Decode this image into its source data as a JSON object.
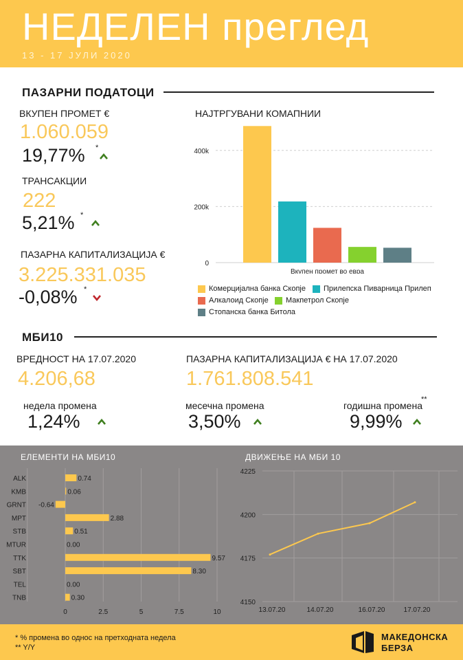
{
  "header": {
    "title": "НЕДЕЛЕН преглед",
    "dates": "13 - 17 ЈУЛИ 2020"
  },
  "market": {
    "section_title": "ПАЗАРНИ ПОДАТОЦИ",
    "turnover_label": "ВКУПЕН ПРОМЕТ €",
    "turnover_value": "1.060.059",
    "turnover_change": "19,77%",
    "transactions_label": "ТРАНСАКЦИИ",
    "transactions_value": "222",
    "transactions_change": "5,21%",
    "cap_label": "ПАЗАРНА КАПИТАЛИЗАЦИЈА €",
    "cap_value": "3.225.331.035",
    "cap_change": "-0,08%",
    "star": "*"
  },
  "mbi": {
    "section_title": "МБИ10",
    "value_label": "ВРЕДНОСТ НА 17.07.2020",
    "value": "4.206,68",
    "cap_label": "ПАЗАРНА КАПИТАЛИЗАЦИЈА € НА 17.07.2020",
    "cap_value": "1.761.808.541",
    "weekly_label": "недела промена",
    "weekly_value": "1,24%",
    "monthly_label": "месечна промена",
    "monthly_value": "3,50%",
    "yearly_label": "годишна промена",
    "yearly_value": "9,99%",
    "yearly_star": "**"
  },
  "footer": {
    "note1": "* % промена во однос на претходната недела",
    "note2": "** Y/Y",
    "logo_line1": "МАКЕДОНСКА",
    "logo_line2": "БЕРЗА"
  },
  "colors": {
    "accent_yellow": "#fdc84e",
    "value_yellow": "#f9c85a",
    "up_green": "#3f7f1f",
    "down_red": "#c0272d",
    "gray_panel": "#8a8787"
  },
  "chart_data": [
    {
      "type": "bar",
      "title": "НАЈТРГУВАНИ КОМАПНИИ",
      "xlabel": "Вкупен промет во евра",
      "ylabel": "",
      "ylim": [
        0,
        500000
      ],
      "yticks": [
        0,
        200000,
        400000
      ],
      "ytick_labels": [
        "0",
        "200k",
        "400k"
      ],
      "categories": [
        "Комерцијална банка Скопје",
        "Прилепска Пиварница Прилеп",
        "Алкалоид Скопје",
        "Макпетрол Скопје",
        "Стопанска банка Битола"
      ],
      "values": [
        487000,
        218000,
        124000,
        56000,
        53000
      ],
      "colors": [
        "#fdc84e",
        "#1db3bd",
        "#e96a4f",
        "#85d12e",
        "#5e7f86"
      ],
      "legend": [
        "Комерцијална банка Скопје",
        "Прилепска Пиварница Прилеп",
        "Алкалоид Скопје",
        "Макпетрол Скопје",
        "Стопанска банка Битола"
      ]
    },
    {
      "type": "bar",
      "orientation": "horizontal",
      "title": "ЕЛЕМЕНТИ НА МБИ10",
      "categories": [
        "ALK",
        "KMB",
        "GRNT",
        "MPT",
        "STB",
        "MTUR",
        "TTK",
        "SBT",
        "TEL",
        "TNB"
      ],
      "values": [
        0.74,
        0.06,
        -0.64,
        2.88,
        0.51,
        0.0,
        9.57,
        8.3,
        0.0,
        0.3
      ],
      "value_labels": [
        "0.74",
        "0.06",
        "-0.64",
        "2.88",
        "0.51",
        "0.00",
        "9.57",
        "8.30",
        "0.00",
        "0.30"
      ],
      "xlim": [
        -2.5,
        10
      ],
      "xticks": [
        0,
        2.5,
        5,
        7.5,
        10
      ],
      "xtick_labels": [
        "0",
        "2.5",
        "5",
        "7.5",
        "10"
      ],
      "color": "#fdc84e"
    },
    {
      "type": "line",
      "title": "ДВИЖЕЊЕ НА МБИ 10",
      "x": [
        "13.07.20",
        "14.07.20",
        "16.07.20",
        "17.07.20"
      ],
      "x_pos": [
        0,
        1,
        2,
        3
      ],
      "y": [
        4177,
        4189,
        4195,
        4207
      ],
      "ylim": [
        4150,
        4225
      ],
      "yticks": [
        4150,
        4175,
        4200,
        4225
      ],
      "color": "#fdc84e"
    }
  ]
}
